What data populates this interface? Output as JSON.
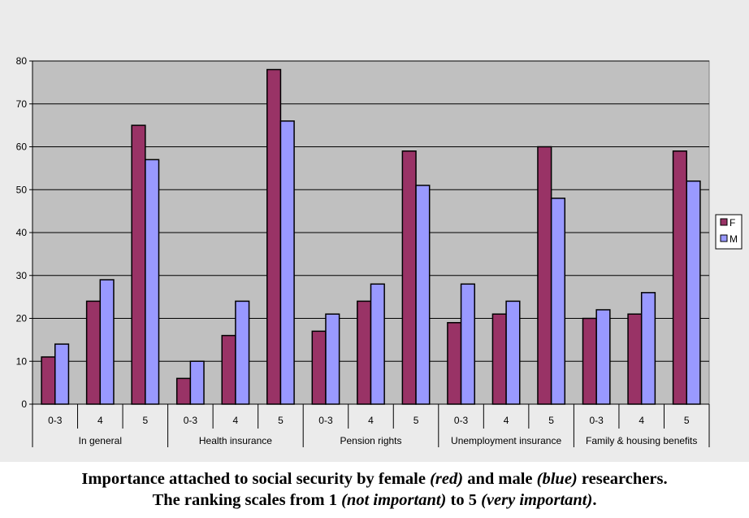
{
  "colors": {
    "F": "#993366",
    "M": "#9999ff",
    "plot_bg": "#c0c0c0",
    "chart_bg": "#ebebeb"
  },
  "chart_data": {
    "type": "bar",
    "title": "",
    "xlabel": "",
    "ylabel": "",
    "ylim": [
      0,
      80
    ],
    "yticks": [
      0,
      10,
      20,
      30,
      40,
      50,
      60,
      70,
      80
    ],
    "grid": true,
    "legend_position": "right",
    "groups": [
      {
        "name": "In general",
        "categories": [
          "0-3",
          "4",
          "5"
        ]
      },
      {
        "name": "Health insurance",
        "categories": [
          "0-3",
          "4",
          "5"
        ]
      },
      {
        "name": "Pension rights",
        "categories": [
          "0-3",
          "4",
          "5"
        ]
      },
      {
        "name": "Unemployment insurance",
        "categories": [
          "0-3",
          "4",
          "5"
        ]
      },
      {
        "name": "Family & housing benefits",
        "categories": [
          "0-3",
          "4",
          "5"
        ]
      }
    ],
    "series": [
      {
        "name": "F",
        "values": [
          11,
          24,
          65,
          6,
          16,
          78,
          17,
          24,
          59,
          19,
          21,
          60,
          20,
          21,
          59
        ]
      },
      {
        "name": "M",
        "values": [
          14,
          29,
          57,
          10,
          24,
          66,
          21,
          28,
          51,
          28,
          24,
          48,
          22,
          26,
          52
        ]
      }
    ]
  },
  "caption": {
    "line1_a": "Importance attached to social security by female ",
    "line1_red": "(red)",
    "line1_b": " and male ",
    "line1_blue": "(blue)",
    "line1_c": " researchers.",
    "line2_a": "The ranking scales from 1 ",
    "line2_not": "(not important)",
    "line2_b": " to 5 ",
    "line2_very": "(very important)",
    "line2_c": "."
  }
}
